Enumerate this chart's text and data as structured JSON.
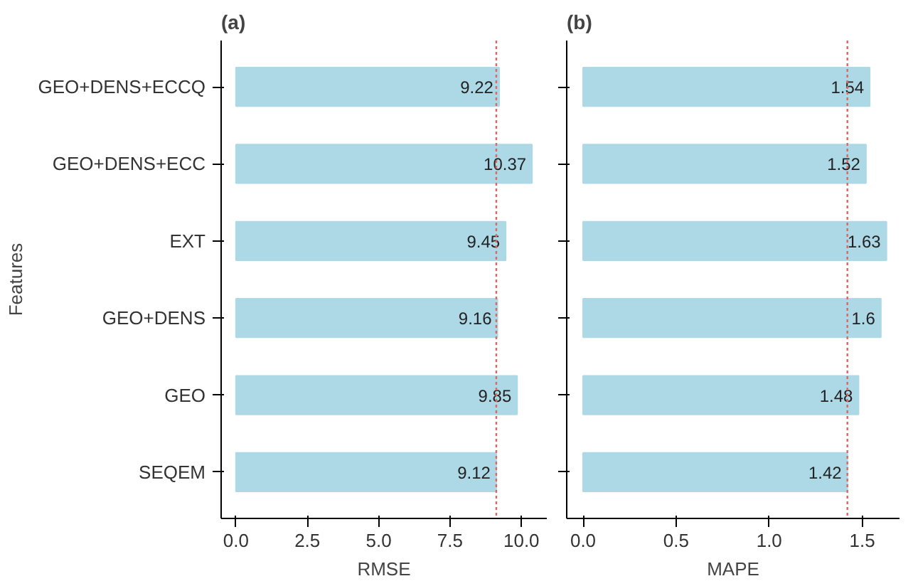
{
  "chart_data": [
    {
      "type": "bar",
      "orientation": "horizontal",
      "title": "(a)",
      "xlabel": "RMSE",
      "ylabel": "Features",
      "categories": [
        "GEO+DENS+ECCQ",
        "GEO+DENS+ECC",
        "EXT",
        "GEO+DENS",
        "GEO",
        "SEQEM"
      ],
      "values": [
        9.22,
        10.37,
        9.45,
        9.16,
        9.85,
        9.12
      ],
      "color": "#add8e6",
      "data_labels": true,
      "xlim": [
        -0.52,
        10.89
      ],
      "xticks": [
        {
          "value": 0,
          "label": "0.0"
        },
        2.5,
        {
          "value": 5,
          "label": "5.0"
        },
        7.5,
        {
          "value": 10,
          "label": "10.0"
        }
      ],
      "ref_lines": [
        {
          "axis": "x",
          "value": 9.12,
          "color": "#e06666",
          "line_style": "dotted"
        }
      ],
      "grid": false
    },
    {
      "type": "bar",
      "orientation": "horizontal",
      "title": "(b)",
      "xlabel": "MAPE",
      "categories": [
        null,
        null,
        null,
        null,
        null,
        null
      ],
      "values": [
        1.54,
        1.52,
        1.63,
        1.6,
        1.48,
        1.42
      ],
      "color": "#add8e6",
      "data_labels": true,
      "xlim": [
        -0.088,
        1.7
      ],
      "xticks": [
        {
          "value": 0,
          "label": "0.0"
        },
        0.5,
        {
          "value": 1,
          "label": "1.0"
        },
        1.5
      ],
      "ref_lines": [
        {
          "axis": "x",
          "value": 1.42,
          "color": "#e06666",
          "line_style": "dotted"
        }
      ],
      "grid": false,
      "tick_labels": "x"
    }
  ]
}
